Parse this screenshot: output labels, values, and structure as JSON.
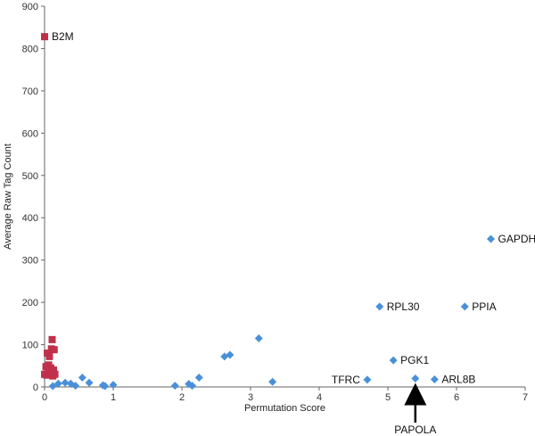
{
  "chart_data": {
    "type": "scatter",
    "xlabel": "Permutation Score",
    "ylabel": "Average Raw Tag Count",
    "xlim": [
      0,
      7
    ],
    "ylim": [
      0,
      900
    ],
    "x_ticks": [
      "0",
      "1",
      "2",
      "3",
      "4",
      "5",
      "6",
      "7"
    ],
    "y_ticks": [
      "0",
      "100",
      "200",
      "300",
      "400",
      "500",
      "600",
      "700",
      "800",
      "900"
    ],
    "grid": false,
    "series": [
      {
        "marker": "square",
        "color": "#c0304a",
        "points": [
          {
            "x": 0.0,
            "y": 828,
            "label": "B2M"
          },
          {
            "x": 0.0,
            "y": 30
          },
          {
            "x": 0.02,
            "y": 48
          },
          {
            "x": 0.03,
            "y": 28
          },
          {
            "x": 0.04,
            "y": 80
          },
          {
            "x": 0.05,
            "y": 38
          },
          {
            "x": 0.06,
            "y": 52
          },
          {
            "x": 0.07,
            "y": 72
          },
          {
            "x": 0.08,
            "y": 33
          },
          {
            "x": 0.09,
            "y": 45
          },
          {
            "x": 0.1,
            "y": 90
          },
          {
            "x": 0.11,
            "y": 112
          },
          {
            "x": 0.12,
            "y": 26
          },
          {
            "x": 0.13,
            "y": 40
          },
          {
            "x": 0.14,
            "y": 88
          },
          {
            "x": 0.15,
            "y": 30
          }
        ]
      },
      {
        "marker": "diamond",
        "color": "#4a90d9",
        "points": [
          {
            "x": 0.12,
            "y": 2
          },
          {
            "x": 0.2,
            "y": 8
          },
          {
            "x": 0.3,
            "y": 10
          },
          {
            "x": 0.38,
            "y": 8
          },
          {
            "x": 0.45,
            "y": 3
          },
          {
            "x": 0.55,
            "y": 22
          },
          {
            "x": 0.65,
            "y": 10
          },
          {
            "x": 0.85,
            "y": 4
          },
          {
            "x": 0.88,
            "y": 2
          },
          {
            "x": 1.0,
            "y": 5
          },
          {
            "x": 1.9,
            "y": 3
          },
          {
            "x": 2.1,
            "y": 7
          },
          {
            "x": 2.15,
            "y": 3
          },
          {
            "x": 2.25,
            "y": 22
          },
          {
            "x": 2.62,
            "y": 72
          },
          {
            "x": 2.7,
            "y": 76
          },
          {
            "x": 3.12,
            "y": 115
          },
          {
            "x": 3.32,
            "y": 12
          },
          {
            "x": 4.7,
            "y": 17,
            "label": "TFRC",
            "label_side": "left"
          },
          {
            "x": 4.88,
            "y": 190,
            "label": "RPL30"
          },
          {
            "x": 5.08,
            "y": 63,
            "label": "PGK1"
          },
          {
            "x": 5.4,
            "y": 20
          },
          {
            "x": 5.68,
            "y": 18,
            "label": "ARL8B"
          },
          {
            "x": 6.12,
            "y": 190,
            "label": "PPIA"
          },
          {
            "x": 6.5,
            "y": 350,
            "label": "GAPDH"
          }
        ]
      }
    ],
    "annotations": [
      {
        "text": "PAPOLA",
        "x": 5.4,
        "type": "arrow-up-from-below-axis"
      }
    ]
  }
}
